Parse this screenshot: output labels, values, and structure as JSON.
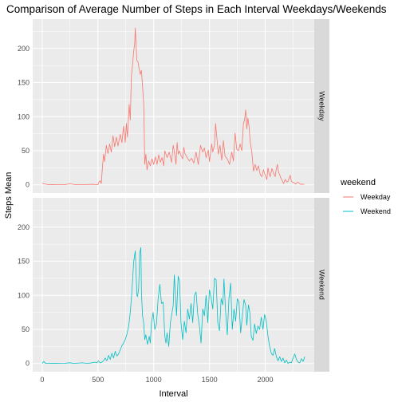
{
  "chart_data": {
    "type": "line",
    "title": "Comparison of Average Number of Steps in Each Interval Weekdays/Weekends",
    "xlabel": "Interval",
    "ylabel": "Steps Mean",
    "xlim": [
      -85,
      2440
    ],
    "ylim": [
      -12,
      243
    ],
    "x_ticks": [
      0,
      500,
      1000,
      1500,
      2000
    ],
    "y_ticks": [
      0,
      50,
      100,
      150,
      200
    ],
    "grid": true,
    "legend": {
      "title": "weekend",
      "position": "right",
      "entries": [
        {
          "label": "Weekday",
          "color": "#F8766D"
        },
        {
          "label": "Weekend",
          "color": "#00BFC4"
        }
      ]
    },
    "panels": [
      {
        "strip": "Weekday",
        "color": "#F8766D",
        "points": [
          [
            0,
            2.3
          ],
          [
            50,
            0.3
          ],
          [
            100,
            0.4
          ],
          [
            150,
            0.1
          ],
          [
            200,
            0.1
          ],
          [
            250,
            1.6
          ],
          [
            300,
            0.1
          ],
          [
            350,
            0.1
          ],
          [
            400,
            0.4
          ],
          [
            450,
            0.8
          ],
          [
            500,
            0.1
          ],
          [
            505,
            3
          ],
          [
            520,
            6
          ],
          [
            530,
            2
          ],
          [
            540,
            25
          ],
          [
            550,
            45
          ],
          [
            560,
            34
          ],
          [
            575,
            58
          ],
          [
            590,
            46
          ],
          [
            605,
            60
          ],
          [
            620,
            48
          ],
          [
            635,
            72
          ],
          [
            650,
            56
          ],
          [
            665,
            70
          ],
          [
            680,
            57
          ],
          [
            700,
            74
          ],
          [
            715,
            62
          ],
          [
            730,
            86
          ],
          [
            745,
            62
          ],
          [
            755,
            90
          ],
          [
            765,
            70
          ],
          [
            780,
            118
          ],
          [
            790,
            95
          ],
          [
            800,
            160
          ],
          [
            810,
            175
          ],
          [
            820,
            195
          ],
          [
            830,
            208
          ],
          [
            835,
            230
          ],
          [
            840,
            212
          ],
          [
            845,
            195
          ],
          [
            850,
            182
          ],
          [
            860,
            180
          ],
          [
            870,
            170
          ],
          [
            880,
            162
          ],
          [
            890,
            168
          ],
          [
            900,
            145
          ],
          [
            910,
            120
          ],
          [
            915,
            80
          ],
          [
            920,
            30
          ],
          [
            930,
            45
          ],
          [
            940,
            22
          ],
          [
            955,
            35
          ],
          [
            970,
            28
          ],
          [
            985,
            38
          ],
          [
            1000,
            30
          ],
          [
            1015,
            41
          ],
          [
            1030,
            30
          ],
          [
            1045,
            44
          ],
          [
            1060,
            33
          ],
          [
            1075,
            40
          ],
          [
            1090,
            28
          ],
          [
            1100,
            50
          ],
          [
            1120,
            40
          ],
          [
            1140,
            48
          ],
          [
            1160,
            33
          ],
          [
            1175,
            58
          ],
          [
            1185,
            49
          ],
          [
            1200,
            30
          ],
          [
            1210,
            62
          ],
          [
            1220,
            45
          ],
          [
            1230,
            50
          ],
          [
            1245,
            43
          ],
          [
            1260,
            38
          ],
          [
            1270,
            55
          ],
          [
            1280,
            46
          ],
          [
            1300,
            40
          ],
          [
            1320,
            35
          ],
          [
            1340,
            39
          ],
          [
            1360,
            32
          ],
          [
            1380,
            48
          ],
          [
            1400,
            30
          ],
          [
            1420,
            58
          ],
          [
            1440,
            48
          ],
          [
            1455,
            54
          ],
          [
            1470,
            40
          ],
          [
            1490,
            51
          ],
          [
            1500,
            34
          ],
          [
            1520,
            60
          ],
          [
            1530,
            48
          ],
          [
            1545,
            58
          ],
          [
            1555,
            90
          ],
          [
            1565,
            72
          ],
          [
            1580,
            45
          ],
          [
            1595,
            58
          ],
          [
            1610,
            36
          ],
          [
            1625,
            65
          ],
          [
            1640,
            42
          ],
          [
            1660,
            38
          ],
          [
            1680,
            30
          ],
          [
            1700,
            48
          ],
          [
            1715,
            35
          ],
          [
            1730,
            76
          ],
          [
            1745,
            52
          ],
          [
            1760,
            50
          ],
          [
            1775,
            60
          ],
          [
            1790,
            50
          ],
          [
            1805,
            90
          ],
          [
            1815,
            95
          ],
          [
            1825,
            110
          ],
          [
            1835,
            82
          ],
          [
            1845,
            98
          ],
          [
            1855,
            86
          ],
          [
            1865,
            64
          ],
          [
            1880,
            48
          ],
          [
            1895,
            20
          ],
          [
            1910,
            30
          ],
          [
            1925,
            21
          ],
          [
            1940,
            28
          ],
          [
            1955,
            15
          ],
          [
            1970,
            12
          ],
          [
            1985,
            22
          ],
          [
            2000,
            14
          ],
          [
            2015,
            8
          ],
          [
            2025,
            25
          ],
          [
            2035,
            16
          ],
          [
            2045,
            12
          ],
          [
            2060,
            24
          ],
          [
            2075,
            17
          ],
          [
            2090,
            12
          ],
          [
            2100,
            24
          ],
          [
            2110,
            30
          ],
          [
            2120,
            18
          ],
          [
            2130,
            15
          ],
          [
            2140,
            10
          ],
          [
            2150,
            7
          ],
          [
            2165,
            2
          ],
          [
            2180,
            8
          ],
          [
            2195,
            4
          ],
          [
            2205,
            5
          ],
          [
            2215,
            10
          ],
          [
            2225,
            14
          ],
          [
            2235,
            5
          ],
          [
            2245,
            4
          ],
          [
            2260,
            3
          ],
          [
            2275,
            1
          ],
          [
            2290,
            4
          ],
          [
            2300,
            3
          ],
          [
            2320,
            0.5
          ],
          [
            2335,
            1.2
          ],
          [
            2350,
            0.5
          ]
        ]
      },
      {
        "strip": "Weekend",
        "color": "#00BFC4",
        "points": [
          [
            0,
            0.2
          ],
          [
            15,
            3
          ],
          [
            30,
            0.1
          ],
          [
            50,
            0.1
          ],
          [
            100,
            0.2
          ],
          [
            150,
            0.1
          ],
          [
            200,
            0.3
          ],
          [
            250,
            1.1
          ],
          [
            280,
            0.1
          ],
          [
            320,
            0.6
          ],
          [
            360,
            1
          ],
          [
            400,
            0.3
          ],
          [
            440,
            0.8
          ],
          [
            470,
            2
          ],
          [
            490,
            1
          ],
          [
            505,
            4
          ],
          [
            520,
            0.8
          ],
          [
            535,
            2
          ],
          [
            550,
            4
          ],
          [
            565,
            8
          ],
          [
            580,
            4
          ],
          [
            595,
            12
          ],
          [
            610,
            6
          ],
          [
            625,
            15
          ],
          [
            640,
            8
          ],
          [
            655,
            18
          ],
          [
            670,
            11
          ],
          [
            685,
            14
          ],
          [
            700,
            20
          ],
          [
            715,
            26
          ],
          [
            730,
            30
          ],
          [
            745,
            35
          ],
          [
            760,
            43
          ],
          [
            775,
            54
          ],
          [
            790,
            75
          ],
          [
            800,
            95
          ],
          [
            810,
            120
          ],
          [
            820,
            148
          ],
          [
            830,
            160
          ],
          [
            835,
            165
          ],
          [
            840,
            140
          ],
          [
            845,
            120
          ],
          [
            850,
            100
          ],
          [
            855,
            98
          ],
          [
            865,
            110
          ],
          [
            875,
            162
          ],
          [
            885,
            170
          ],
          [
            890,
            105
          ],
          [
            900,
            70
          ],
          [
            910,
            60
          ],
          [
            920,
            35
          ],
          [
            930,
            42
          ],
          [
            945,
            28
          ],
          [
            960,
            40
          ],
          [
            970,
            30
          ],
          [
            980,
            60
          ],
          [
            995,
            75
          ],
          [
            1010,
            50
          ],
          [
            1025,
            58
          ],
          [
            1040,
            95
          ],
          [
            1055,
            116
          ],
          [
            1070,
            88
          ],
          [
            1085,
            90
          ],
          [
            1100,
            40
          ],
          [
            1110,
            30
          ],
          [
            1120,
            45
          ],
          [
            1135,
            25
          ],
          [
            1150,
            60
          ],
          [
            1165,
            75
          ],
          [
            1175,
            85
          ],
          [
            1185,
            130
          ],
          [
            1195,
            100
          ],
          [
            1205,
            70
          ],
          [
            1220,
            128
          ],
          [
            1232,
            120
          ],
          [
            1245,
            60
          ],
          [
            1260,
            35
          ],
          [
            1275,
            62
          ],
          [
            1290,
            45
          ],
          [
            1305,
            80
          ],
          [
            1320,
            65
          ],
          [
            1335,
            88
          ],
          [
            1350,
            60
          ],
          [
            1365,
            100
          ],
          [
            1380,
            105
          ],
          [
            1395,
            72
          ],
          [
            1410,
            55
          ],
          [
            1425,
            30
          ],
          [
            1440,
            80
          ],
          [
            1455,
            70
          ],
          [
            1470,
            100
          ],
          [
            1485,
            60
          ],
          [
            1500,
            108
          ],
          [
            1515,
            96
          ],
          [
            1530,
            80
          ],
          [
            1545,
            125
          ],
          [
            1560,
            123
          ],
          [
            1575,
            60
          ],
          [
            1590,
            48
          ],
          [
            1605,
            95
          ],
          [
            1620,
            86
          ],
          [
            1630,
            124
          ],
          [
            1645,
            76
          ],
          [
            1660,
            42
          ],
          [
            1675,
            95
          ],
          [
            1690,
            118
          ],
          [
            1705,
            50
          ],
          [
            1720,
            80
          ],
          [
            1735,
            62
          ],
          [
            1750,
            95
          ],
          [
            1765,
            90
          ],
          [
            1780,
            45
          ],
          [
            1795,
            70
          ],
          [
            1810,
            94
          ],
          [
            1825,
            85
          ],
          [
            1835,
            56
          ],
          [
            1850,
            86
          ],
          [
            1862,
            75
          ],
          [
            1875,
            40
          ],
          [
            1890,
            34
          ],
          [
            1905,
            58
          ],
          [
            1920,
            44
          ],
          [
            1935,
            55
          ],
          [
            1950,
            50
          ],
          [
            1965,
            68
          ],
          [
            1980,
            50
          ],
          [
            1995,
            72
          ],
          [
            2010,
            62
          ],
          [
            2025,
            40
          ],
          [
            2040,
            25
          ],
          [
            2055,
            15
          ],
          [
            2070,
            12
          ],
          [
            2085,
            22
          ],
          [
            2100,
            10
          ],
          [
            2115,
            4
          ],
          [
            2130,
            10
          ],
          [
            2145,
            3
          ],
          [
            2160,
            8
          ],
          [
            2175,
            1
          ],
          [
            2190,
            5
          ],
          [
            2205,
            0
          ],
          [
            2220,
            2
          ],
          [
            2235,
            1
          ],
          [
            2250,
            8
          ],
          [
            2265,
            14
          ],
          [
            2280,
            6
          ],
          [
            2295,
            2
          ],
          [
            2310,
            1
          ],
          [
            2325,
            7
          ],
          [
            2340,
            3
          ],
          [
            2355,
            10
          ]
        ]
      }
    ]
  }
}
